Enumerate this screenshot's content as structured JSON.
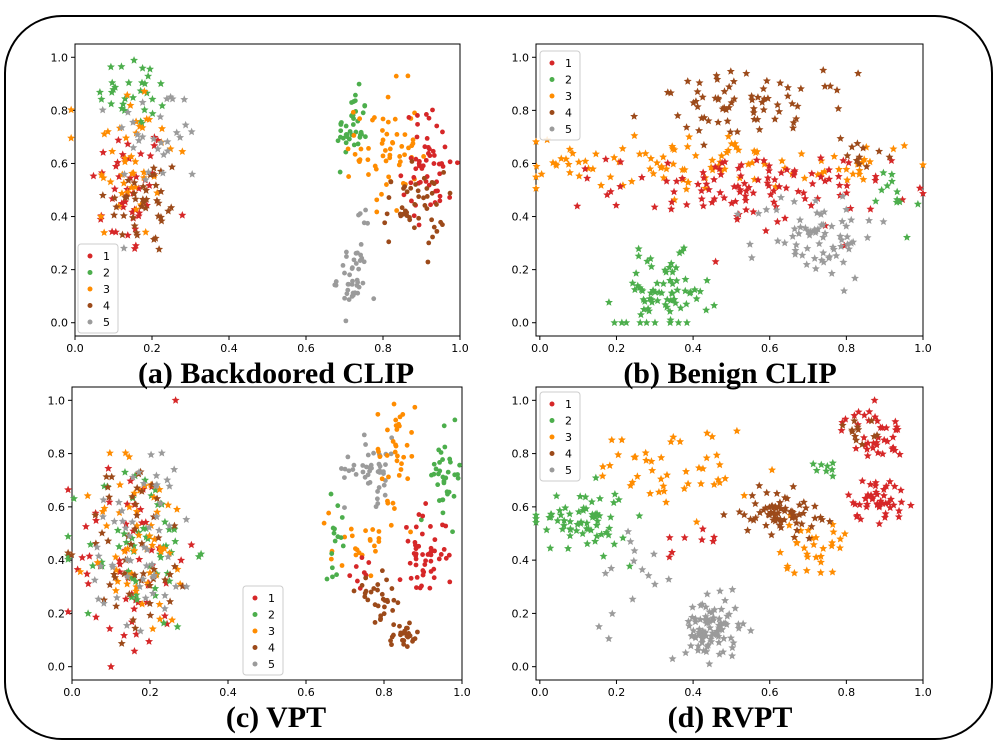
{
  "colors": {
    "1": "#d62728",
    "2": "#4cae4c",
    "3": "#ff8c00",
    "4": "#9c4a1a",
    "5": "#9b9b9b"
  },
  "chart_data": [
    {
      "type": "scatter",
      "title": "(a) Backdoored CLIP",
      "xlim": [
        0,
        1
      ],
      "ylim": [
        0,
        1
      ],
      "xticks": [
        "0.0",
        "0.2",
        "0.4",
        "0.6",
        "0.8",
        "1.0"
      ],
      "yticks": [
        "0.0",
        "0.2",
        "0.4",
        "0.6",
        "0.8",
        "1.0"
      ],
      "legend": {
        "position": "lower-left",
        "labels": [
          "1",
          "2",
          "3",
          "4",
          "5"
        ]
      },
      "clusters": [
        {
          "label": "1",
          "marker": "star",
          "cx": 0.14,
          "cy": 0.5,
          "sx": 0.05,
          "sy": 0.13,
          "n": 45
        },
        {
          "label": "2",
          "marker": "star",
          "cx": 0.16,
          "cy": 0.87,
          "sx": 0.05,
          "sy": 0.07,
          "n": 30
        },
        {
          "label": "3",
          "marker": "star",
          "cx": 0.14,
          "cy": 0.62,
          "sx": 0.06,
          "sy": 0.16,
          "n": 45
        },
        {
          "label": "4",
          "marker": "star",
          "cx": 0.18,
          "cy": 0.45,
          "sx": 0.05,
          "sy": 0.1,
          "n": 40
        },
        {
          "label": "5",
          "marker": "star",
          "cx": 0.22,
          "cy": 0.7,
          "sx": 0.06,
          "sy": 0.1,
          "n": 30
        },
        {
          "label": "2",
          "marker": "dot",
          "cx": 0.72,
          "cy": 0.73,
          "sx": 0.02,
          "sy": 0.07,
          "n": 40
        },
        {
          "label": "3",
          "marker": "dot",
          "cx": 0.81,
          "cy": 0.65,
          "sx": 0.04,
          "sy": 0.12,
          "n": 60
        },
        {
          "label": "1",
          "marker": "dot",
          "cx": 0.92,
          "cy": 0.6,
          "sx": 0.035,
          "sy": 0.1,
          "n": 55
        },
        {
          "label": "4",
          "marker": "dot",
          "cx": 0.88,
          "cy": 0.43,
          "sx": 0.04,
          "sy": 0.07,
          "n": 45
        },
        {
          "label": "5",
          "marker": "dot",
          "cx": 0.72,
          "cy": 0.17,
          "sx": 0.02,
          "sy": 0.07,
          "n": 40
        },
        {
          "label": "5",
          "marker": "dot",
          "cx": 0.75,
          "cy": 0.37,
          "sx": 0.02,
          "sy": 0.03,
          "n": 5
        }
      ]
    },
    {
      "type": "scatter",
      "title": "(b) Benign CLIP",
      "xlim": [
        0,
        1
      ],
      "ylim": [
        0,
        1
      ],
      "xticks": [
        "0.0",
        "0.2",
        "0.4",
        "0.6",
        "0.8",
        "1.0"
      ],
      "yticks": [
        "0.0",
        "0.2",
        "0.4",
        "0.6",
        "0.8",
        "1.0"
      ],
      "legend": {
        "position": "top-left",
        "labels": [
          "1",
          "2",
          "3",
          "4",
          "5"
        ]
      },
      "clusters": [
        {
          "label": "4",
          "marker": "star",
          "cx": 0.55,
          "cy": 0.82,
          "sx": 0.13,
          "sy": 0.06,
          "n": 70
        },
        {
          "label": "3",
          "marker": "star",
          "cx": 0.35,
          "cy": 0.6,
          "sx": 0.2,
          "sy": 0.05,
          "n": 90
        },
        {
          "label": "3",
          "marker": "star",
          "cx": 0.85,
          "cy": 0.6,
          "sx": 0.05,
          "sy": 0.04,
          "n": 15
        },
        {
          "label": "1",
          "marker": "star",
          "cx": 0.55,
          "cy": 0.5,
          "sx": 0.18,
          "sy": 0.07,
          "n": 110
        },
        {
          "label": "2",
          "marker": "star",
          "cx": 0.32,
          "cy": 0.11,
          "sx": 0.06,
          "sy": 0.07,
          "n": 75
        },
        {
          "label": "2",
          "marker": "star",
          "cx": 0.92,
          "cy": 0.45,
          "sx": 0.03,
          "sy": 0.08,
          "n": 12
        },
        {
          "label": "5",
          "marker": "star",
          "cx": 0.72,
          "cy": 0.33,
          "sx": 0.08,
          "sy": 0.08,
          "n": 70
        },
        {
          "label": "4",
          "marker": "star",
          "cx": 0.86,
          "cy": 0.63,
          "sx": 0.03,
          "sy": 0.04,
          "n": 10
        }
      ]
    },
    {
      "type": "scatter",
      "title": "(c) VPT",
      "xlim": [
        0,
        1
      ],
      "ylim": [
        0,
        1
      ],
      "xticks": [
        "0.0",
        "0.2",
        "0.4",
        "0.6",
        "0.8",
        "1.0"
      ],
      "yticks": [
        "0.0",
        "0.2",
        "0.4",
        "0.6",
        "0.8",
        "1.0"
      ],
      "legend": {
        "position": "lower-center",
        "labels": [
          "1",
          "2",
          "3",
          "4",
          "5"
        ]
      },
      "clusters": [
        {
          "label": "1",
          "marker": "star",
          "cx": 0.15,
          "cy": 0.4,
          "sx": 0.07,
          "sy": 0.2,
          "n": 55
        },
        {
          "label": "2",
          "marker": "star",
          "cx": 0.17,
          "cy": 0.45,
          "sx": 0.07,
          "sy": 0.16,
          "n": 60
        },
        {
          "label": "3",
          "marker": "star",
          "cx": 0.18,
          "cy": 0.45,
          "sx": 0.07,
          "sy": 0.17,
          "n": 55
        },
        {
          "label": "4",
          "marker": "star",
          "cx": 0.17,
          "cy": 0.45,
          "sx": 0.07,
          "sy": 0.17,
          "n": 50
        },
        {
          "label": "5",
          "marker": "star",
          "cx": 0.18,
          "cy": 0.5,
          "sx": 0.07,
          "sy": 0.18,
          "n": 55
        },
        {
          "label": "5",
          "marker": "dot",
          "cx": 0.77,
          "cy": 0.74,
          "sx": 0.035,
          "sy": 0.06,
          "n": 45
        },
        {
          "label": "3",
          "marker": "dot",
          "cx": 0.83,
          "cy": 0.82,
          "sx": 0.025,
          "sy": 0.1,
          "n": 35
        },
        {
          "label": "3",
          "marker": "dot",
          "cx": 0.74,
          "cy": 0.48,
          "sx": 0.04,
          "sy": 0.06,
          "n": 25
        },
        {
          "label": "2",
          "marker": "dot",
          "cx": 0.96,
          "cy": 0.72,
          "sx": 0.02,
          "sy": 0.08,
          "n": 35
        },
        {
          "label": "2",
          "marker": "dot",
          "cx": 0.68,
          "cy": 0.5,
          "sx": 0.015,
          "sy": 0.07,
          "n": 15
        },
        {
          "label": "1",
          "marker": "dot",
          "cx": 0.9,
          "cy": 0.42,
          "sx": 0.03,
          "sy": 0.08,
          "n": 50
        },
        {
          "label": "1",
          "marker": "dot",
          "cx": 0.74,
          "cy": 0.34,
          "sx": 0.02,
          "sy": 0.03,
          "n": 8
        },
        {
          "label": "4",
          "marker": "dot",
          "cx": 0.79,
          "cy": 0.26,
          "sx": 0.03,
          "sy": 0.04,
          "n": 30
        },
        {
          "label": "4",
          "marker": "dot",
          "cx": 0.85,
          "cy": 0.11,
          "sx": 0.02,
          "sy": 0.03,
          "n": 30
        }
      ]
    },
    {
      "type": "scatter",
      "title": "(d) RVPT",
      "xlim": [
        0,
        1
      ],
      "ylim": [
        0,
        1
      ],
      "xticks": [
        "0.0",
        "0.2",
        "0.4",
        "0.6",
        "0.8",
        "1.0"
      ],
      "yticks": [
        "0.0",
        "0.2",
        "0.4",
        "0.6",
        "0.8",
        "1.0"
      ],
      "legend": {
        "position": "top-left",
        "labels": [
          "1",
          "2",
          "3",
          "4",
          "5"
        ]
      },
      "clusters": [
        {
          "label": "2",
          "marker": "star",
          "cx": 0.11,
          "cy": 0.55,
          "sx": 0.06,
          "sy": 0.06,
          "n": 65
        },
        {
          "label": "5",
          "marker": "star",
          "cx": 0.45,
          "cy": 0.14,
          "sx": 0.035,
          "sy": 0.06,
          "n": 90
        },
        {
          "label": "5",
          "marker": "star",
          "cx": 0.25,
          "cy": 0.37,
          "sx": 0.06,
          "sy": 0.1,
          "n": 15
        },
        {
          "label": "3",
          "marker": "star",
          "cx": 0.35,
          "cy": 0.74,
          "sx": 0.1,
          "sy": 0.08,
          "n": 45
        },
        {
          "label": "3",
          "marker": "star",
          "cx": 0.7,
          "cy": 0.45,
          "sx": 0.05,
          "sy": 0.05,
          "n": 30
        },
        {
          "label": "4",
          "marker": "star",
          "cx": 0.63,
          "cy": 0.58,
          "sx": 0.05,
          "sy": 0.04,
          "n": 70
        },
        {
          "label": "1",
          "marker": "star",
          "cx": 0.87,
          "cy": 0.87,
          "sx": 0.04,
          "sy": 0.05,
          "n": 40
        },
        {
          "label": "1",
          "marker": "star",
          "cx": 0.88,
          "cy": 0.63,
          "sx": 0.04,
          "sy": 0.04,
          "n": 45
        },
        {
          "label": "4",
          "marker": "star",
          "cx": 0.84,
          "cy": 0.88,
          "sx": 0.025,
          "sy": 0.04,
          "n": 12
        },
        {
          "label": "2",
          "marker": "star",
          "cx": 0.75,
          "cy": 0.75,
          "sx": 0.03,
          "sy": 0.03,
          "n": 8
        },
        {
          "label": "1",
          "marker": "star",
          "cx": 0.4,
          "cy": 0.45,
          "sx": 0.05,
          "sy": 0.06,
          "n": 8
        }
      ]
    }
  ]
}
